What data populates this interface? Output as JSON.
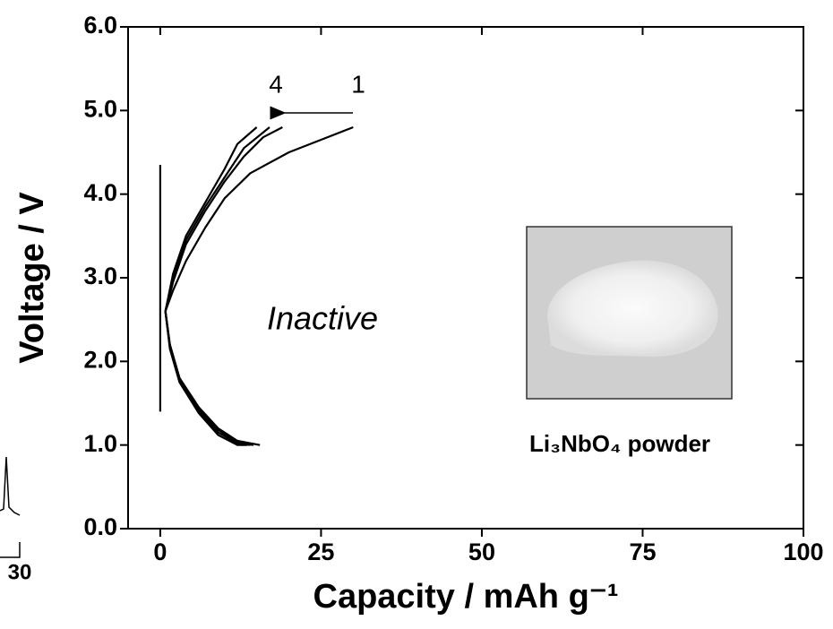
{
  "chart_data": {
    "type": "line",
    "x_label": "Capacity / mAh g⁻¹",
    "y_label": "Voltage / V",
    "xlim": [
      -5,
      100
    ],
    "xticks": [
      0,
      25,
      50,
      75,
      100
    ],
    "ylim": [
      0,
      6
    ],
    "yticks": [
      {
        "value": 0,
        "label": "0.0"
      },
      {
        "value": 1,
        "label": "1.0"
      },
      {
        "value": 2,
        "label": "2.0"
      },
      {
        "value": 3,
        "label": "3.0"
      },
      {
        "value": 4,
        "label": "4.0"
      },
      {
        "value": 5,
        "label": "5.0"
      },
      {
        "value": 6,
        "label": "6.0"
      }
    ],
    "series": [
      {
        "color": "#000000",
        "x": [
          0,
          0
        ],
        "values": [
          1.4,
          4.35
        ]
      },
      {
        "color": "#000000",
        "x": [
          0.8,
          2,
          4,
          7,
          10,
          14,
          20,
          25,
          30
        ],
        "values": [
          2.6,
          2.85,
          3.2,
          3.6,
          3.95,
          4.25,
          4.5,
          4.65,
          4.8
        ]
      },
      {
        "color": "#000000",
        "x": [
          0.8,
          2,
          4,
          7,
          10,
          13,
          16,
          19
        ],
        "values": [
          2.6,
          2.95,
          3.4,
          3.8,
          4.15,
          4.45,
          4.68,
          4.8
        ]
      },
      {
        "color": "#000000",
        "x": [
          0.8,
          2,
          4,
          7,
          10,
          13,
          17
        ],
        "values": [
          2.6,
          3.0,
          3.45,
          3.85,
          4.2,
          4.55,
          4.8
        ]
      },
      {
        "color": "#000000",
        "x": [
          0.8,
          2,
          4,
          7,
          10,
          12,
          15
        ],
        "values": [
          2.6,
          3.05,
          3.5,
          3.9,
          4.3,
          4.6,
          4.8
        ]
      },
      {
        "color": "#000000",
        "x": [
          0.8,
          1.5,
          3,
          6,
          9,
          12,
          15.5
        ],
        "values": [
          2.6,
          2.2,
          1.8,
          1.45,
          1.2,
          1.05,
          1.0
        ]
      },
      {
        "color": "#000000",
        "x": [
          0.8,
          1.5,
          3,
          6,
          9,
          12,
          14.5
        ],
        "values": [
          2.6,
          2.2,
          1.8,
          1.43,
          1.18,
          1.03,
          1.0
        ]
      },
      {
        "color": "#000000",
        "x": [
          0.8,
          1.5,
          3,
          6,
          9,
          12,
          14
        ],
        "values": [
          2.6,
          2.18,
          1.78,
          1.4,
          1.15,
          1.02,
          1.0
        ]
      },
      {
        "color": "#000000",
        "x": [
          0.8,
          1.5,
          3,
          6,
          9,
          12,
          13.5
        ],
        "values": [
          2.6,
          2.15,
          1.75,
          1.38,
          1.12,
          1.0,
          1.0
        ]
      }
    ],
    "annotations": {
      "cycle_last": "4",
      "cycle_first": "1",
      "state": "Inactive",
      "inset_caption": "Li₃NbO₄ powder",
      "cropped_label": "30"
    }
  }
}
